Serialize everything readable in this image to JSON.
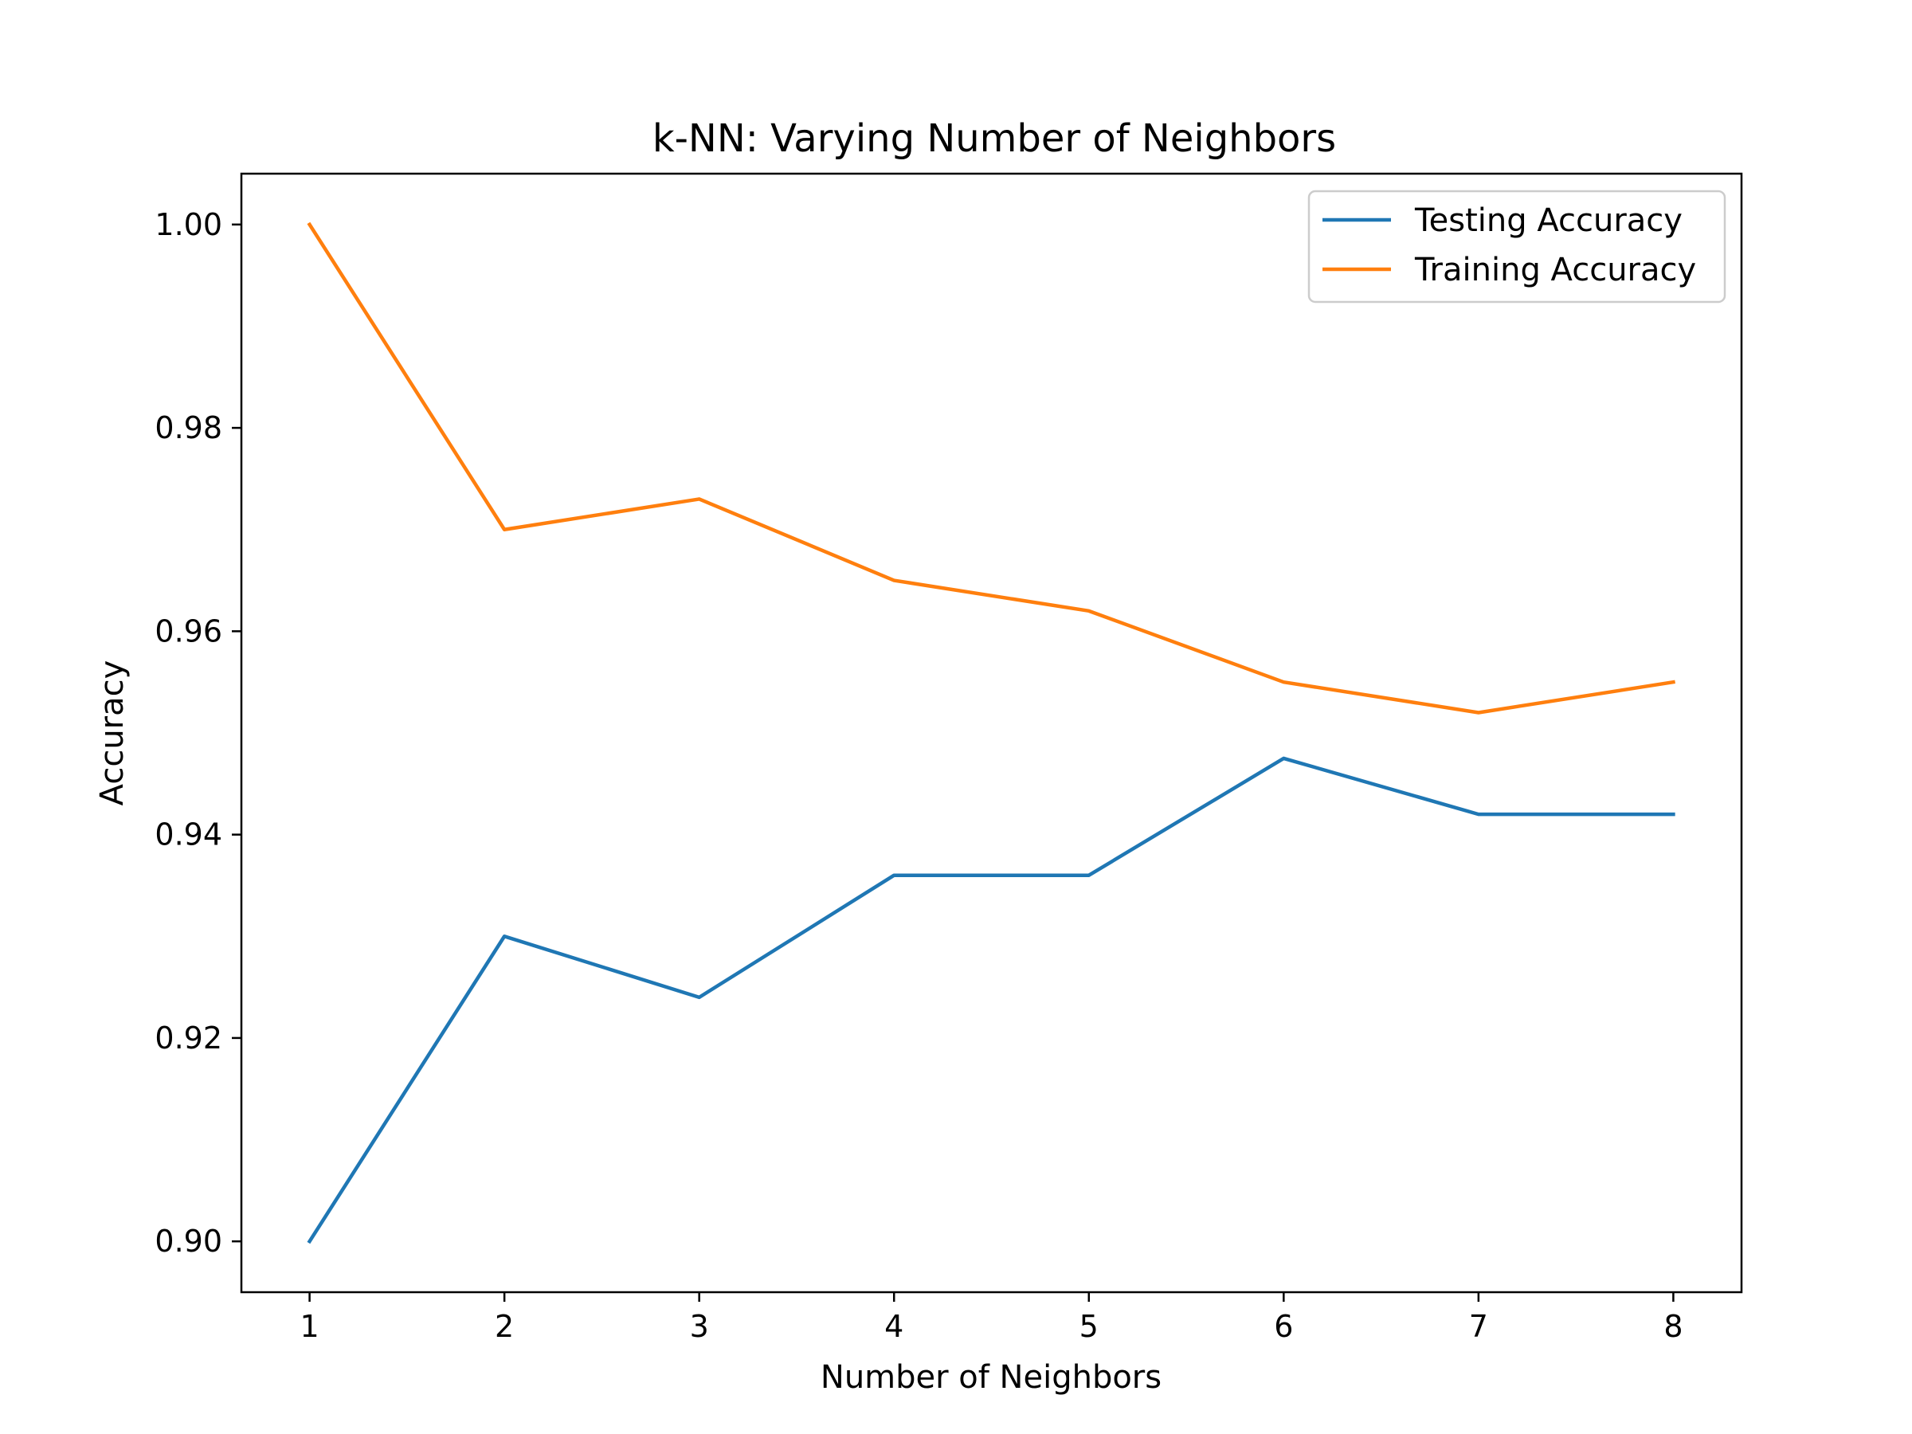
{
  "chart_data": {
    "type": "line",
    "title": "k-NN: Varying Number of Neighbors",
    "xlabel": "Number of Neighbors",
    "ylabel": "Accuracy",
    "x": [
      1,
      2,
      3,
      4,
      5,
      6,
      7,
      8
    ],
    "x_ticks": [
      "1",
      "2",
      "3",
      "4",
      "5",
      "6",
      "7",
      "8"
    ],
    "y_ticks": [
      "0.90",
      "0.92",
      "0.94",
      "0.96",
      "0.98",
      "1.00"
    ],
    "xlim": [
      0.65,
      8.35
    ],
    "ylim": [
      0.895,
      1.005
    ],
    "grid": false,
    "legend_position": "top-right",
    "series": [
      {
        "name": "Testing Accuracy",
        "color": "#1f77b4",
        "values": [
          0.9,
          0.93,
          0.924,
          0.936,
          0.936,
          0.9475,
          0.942,
          0.942
        ]
      },
      {
        "name": "Training Accuracy",
        "color": "#ff7f0e",
        "values": [
          1.0,
          0.97,
          0.973,
          0.965,
          0.962,
          0.955,
          0.952,
          0.955
        ]
      }
    ]
  }
}
